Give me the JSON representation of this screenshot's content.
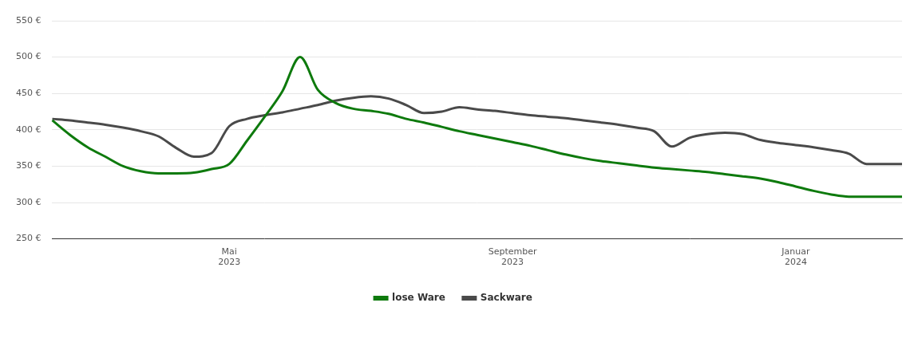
{
  "chart_data": {
    "type": "line",
    "categories": [
      null,
      null,
      null,
      null,
      null,
      null,
      null,
      null,
      null,
      null,
      "Mai 2023",
      null,
      null,
      null,
      null,
      null,
      null,
      null,
      null,
      null,
      null,
      null,
      null,
      null,
      null,
      null,
      "September 2023",
      null,
      null,
      null,
      null,
      null,
      null,
      null,
      null,
      null,
      null,
      null,
      null,
      null,
      null,
      null,
      "Januar 2024",
      null,
      null,
      null,
      null,
      null,
      null
    ],
    "series": [
      {
        "name": "lose Ware",
        "color": "#0e7a0d",
        "values": [
          413,
          393,
          376,
          363,
          350,
          343,
          340,
          340,
          341,
          346,
          353,
          385,
          418,
          453,
          500,
          455,
          437,
          429,
          426,
          422,
          415,
          410,
          404,
          398,
          393,
          388,
          383,
          378,
          372,
          366,
          361,
          357,
          354,
          351,
          348,
          346,
          344,
          342,
          339,
          336,
          333,
          328,
          322,
          316,
          311,
          308,
          308,
          308,
          308
        ]
      },
      {
        "name": "Sackware",
        "color": "#4a4a4a",
        "values": [
          415,
          413,
          410,
          407,
          403,
          398,
          391,
          375,
          363,
          368,
          405,
          415,
          420,
          424,
          429,
          434,
          440,
          444,
          446,
          443,
          434,
          423,
          425,
          431,
          428,
          426,
          423,
          420,
          418,
          416,
          413,
          410,
          407,
          403,
          398,
          377,
          389,
          394,
          396,
          394,
          386,
          382,
          379,
          376,
          372,
          367,
          353,
          353,
          353
        ]
      }
    ],
    "ylim": [
      250,
      550
    ],
    "yticks": [
      {
        "value": 250,
        "label": "250 €"
      },
      {
        "value": 300,
        "label": "300 €"
      },
      {
        "value": 350,
        "label": "350 €"
      },
      {
        "value": 400,
        "label": "400 €"
      },
      {
        "value": 450,
        "label": "450 €"
      },
      {
        "value": 500,
        "label": "500 €"
      },
      {
        "value": 550,
        "label": "550 €"
      }
    ],
    "grid": "y",
    "legend": "bottom"
  }
}
